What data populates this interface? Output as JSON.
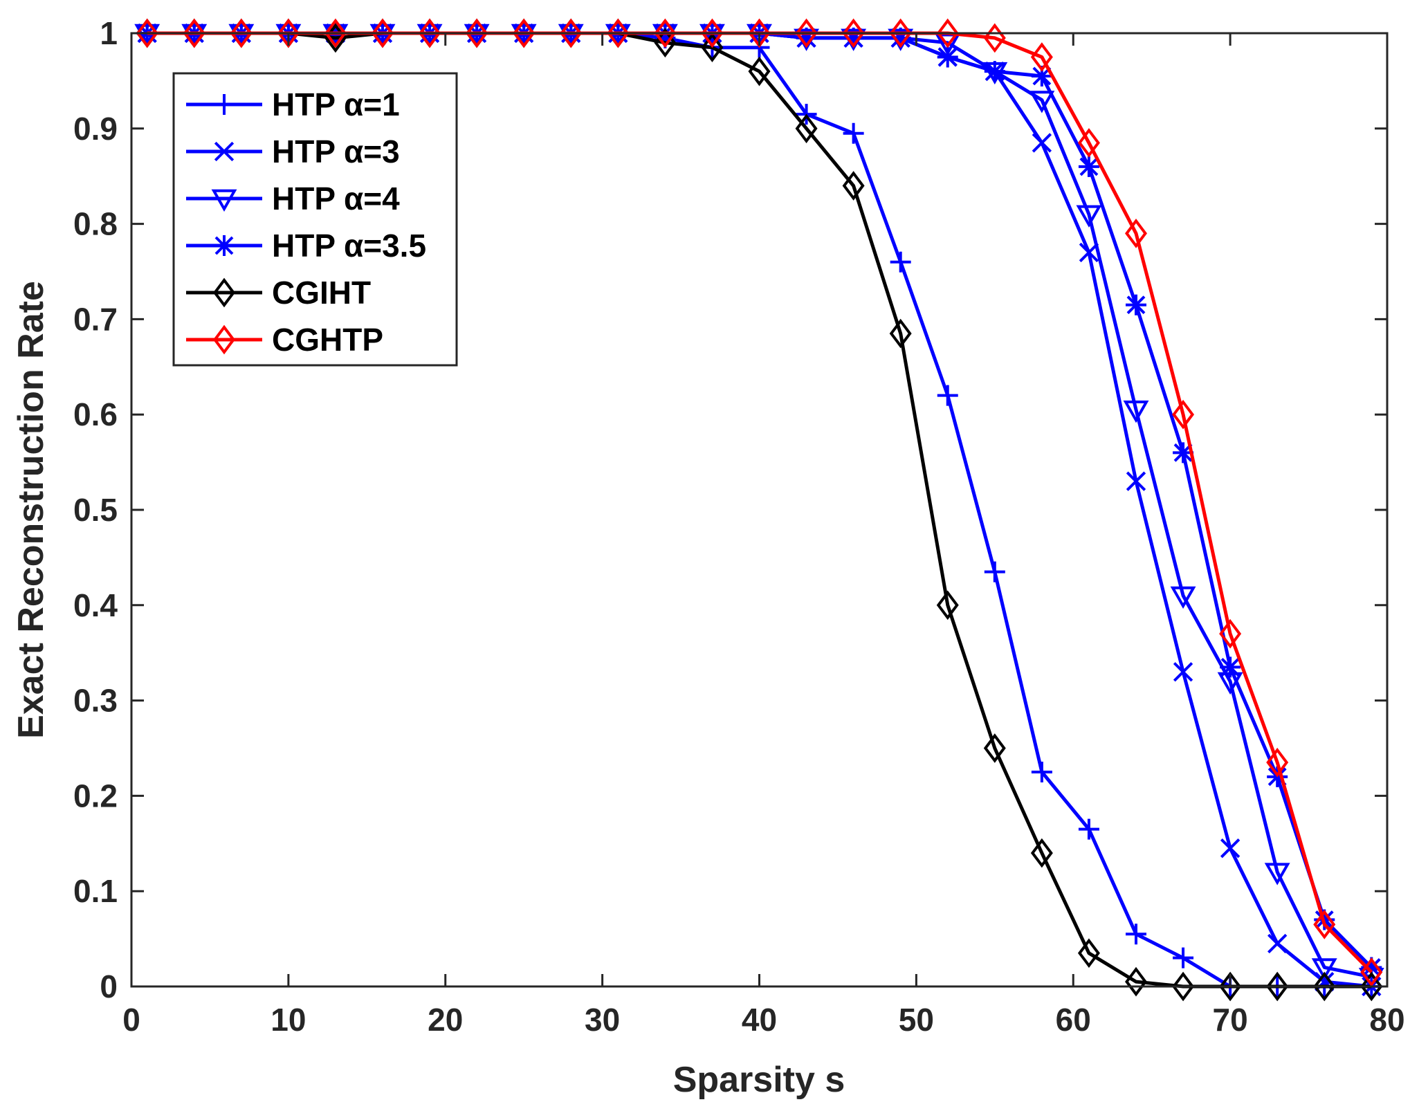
{
  "chart_data": {
    "type": "line",
    "title": "",
    "xlabel": "Sparsity s",
    "ylabel": "Exact Reconstruction Rate",
    "xlim": [
      0,
      80
    ],
    "ylim": [
      0,
      1
    ],
    "xticks": [
      0,
      10,
      20,
      30,
      40,
      50,
      60,
      70,
      80
    ],
    "yticks": [
      0,
      0.1,
      0.2,
      0.3,
      0.4,
      0.5,
      0.6,
      0.7,
      0.8,
      0.9,
      1
    ],
    "ytick_labels": [
      "0",
      "0.1",
      "0.2",
      "0.3",
      "0.4",
      "0.5",
      "0.6",
      "0.7",
      "0.8",
      "0.9",
      "1"
    ],
    "grid": false,
    "legend_position": "top-left",
    "x": [
      1,
      4,
      7,
      10,
      13,
      16,
      19,
      22,
      25,
      28,
      31,
      34,
      37,
      40,
      43,
      46,
      49,
      52,
      55,
      58,
      61,
      64,
      67,
      70,
      73,
      76,
      79
    ],
    "series": [
      {
        "name": "HTP α=1",
        "color": "#0000ff",
        "marker": "plus",
        "values": [
          1,
          1,
          1,
          1,
          1,
          1,
          1,
          1,
          1,
          1,
          1,
          0.995,
          0.985,
          0.985,
          0.915,
          0.895,
          0.76,
          0.62,
          0.435,
          0.225,
          0.165,
          0.055,
          0.03,
          0,
          0,
          0,
          0
        ]
      },
      {
        "name": "HTP α=3",
        "color": "#0000ff",
        "marker": "x",
        "values": [
          1,
          1,
          1,
          1,
          1,
          1,
          1,
          1,
          1,
          1,
          1,
          1,
          1,
          1,
          0.995,
          0.995,
          0.995,
          0.975,
          0.96,
          0.885,
          0.77,
          0.53,
          0.33,
          0.145,
          0.045,
          0.005,
          0
        ]
      },
      {
        "name": "HTP α=4",
        "color": "#0000ff",
        "marker": "triangle-down",
        "values": [
          1,
          1,
          1,
          1,
          1,
          1,
          1,
          1,
          1,
          1,
          1,
          1,
          1,
          1,
          0.995,
          0.995,
          0.995,
          0.99,
          0.96,
          0.93,
          0.81,
          0.605,
          0.41,
          0.32,
          0.12,
          0.02,
          0.01
        ]
      },
      {
        "name": "HTP α=3.5",
        "color": "#0000ff",
        "marker": "star",
        "values": [
          1,
          1,
          1,
          1,
          1,
          1,
          1,
          1,
          1,
          1,
          1,
          1,
          1,
          1,
          0.995,
          0.995,
          0.995,
          0.975,
          0.96,
          0.955,
          0.86,
          0.715,
          0.56,
          0.335,
          0.22,
          0.07,
          0.02
        ]
      },
      {
        "name": "CGIHT",
        "color": "#000000",
        "marker": "diamond",
        "values": [
          1,
          1,
          1,
          1,
          0.995,
          1,
          1,
          1,
          1,
          1,
          1,
          0.99,
          0.985,
          0.96,
          0.9,
          0.84,
          0.685,
          0.4,
          0.25,
          0.14,
          0.035,
          0.005,
          0,
          0,
          0,
          0,
          0
        ]
      },
      {
        "name": "CGHTP",
        "color": "#ff0000",
        "marker": "diamond",
        "values": [
          1,
          1,
          1,
          1,
          1,
          1,
          1,
          1,
          1,
          1,
          1,
          1,
          1,
          1,
          1,
          1,
          1,
          1,
          0.995,
          0.975,
          0.885,
          0.79,
          0.6,
          0.37,
          0.235,
          0.065,
          0.015
        ]
      }
    ]
  }
}
